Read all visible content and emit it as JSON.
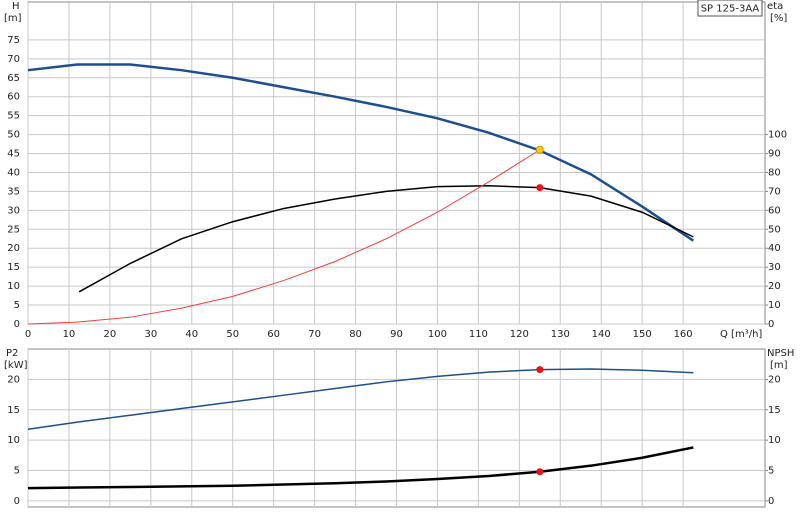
{
  "chart_data": [
    {
      "type": "line",
      "title": "SP 125-3AA",
      "xlabel": "Q [m³/h]",
      "ylabel": "H",
      "yunit": "[m]",
      "y2label": "eta",
      "y2unit": "[%]",
      "xlim": [
        0,
        180
      ],
      "xticks": [
        0,
        10,
        20,
        30,
        40,
        50,
        60,
        70,
        80,
        90,
        100,
        110,
        120,
        130,
        140,
        150,
        160
      ],
      "ylim": [
        0,
        85
      ],
      "yticks": [
        0,
        5,
        10,
        15,
        20,
        25,
        30,
        35,
        40,
        45,
        50,
        55,
        60,
        65,
        70,
        75
      ],
      "y2lim": [
        0,
        170
      ],
      "y2ticks": [
        0,
        10,
        20,
        30,
        40,
        50,
        60,
        70,
        80,
        90,
        100
      ],
      "grid": true,
      "series": [
        {
          "color": "#1f4e8c",
          "width": 2.5,
          "x": [
            0,
            12,
            25,
            37.5,
            50,
            62.5,
            75,
            87.5,
            100,
            112.5,
            125,
            137.5,
            150,
            162.5
          ],
          "values": [
            67,
            68.5,
            68.5,
            67,
            65,
            62.5,
            60,
            57.3,
            54.3,
            50.5,
            45.8,
            39.5,
            31,
            22
          ]
        },
        {
          "color": "#000000",
          "width": 1.5,
          "axis": "y2",
          "x": [
            12.5,
            25,
            37.5,
            50,
            62.5,
            75,
            87.5,
            100,
            112.5,
            125,
            137.5,
            150,
            162.5
          ],
          "values": [
            17,
            32,
            45,
            54,
            61,
            66,
            70,
            72.5,
            73,
            72,
            67.5,
            59,
            46
          ]
        },
        {
          "color": "#f04040",
          "width": 1,
          "x": [
            0,
            12,
            25,
            37.5,
            50,
            62.5,
            75,
            87.5,
            100,
            112.5,
            125
          ],
          "values": [
            0,
            0.5,
            1.8,
            4.2,
            7.3,
            11.5,
            16.5,
            22.5,
            29.5,
            37.5,
            46
          ]
        }
      ],
      "points": [
        {
          "x": 125,
          "y": 46,
          "color": "#ffd400"
        },
        {
          "x": 125,
          "y": 72,
          "color": "#ee1111",
          "axis": "y2"
        }
      ]
    },
    {
      "type": "line",
      "ylabel": "P2",
      "yunit": "[kW]",
      "y2label": "NPSH",
      "y2unit": "[m]",
      "xlim": [
        0,
        180
      ],
      "xticks": [
        0,
        10,
        20,
        30,
        40,
        50,
        60,
        70,
        80,
        90,
        100,
        110,
        120,
        130,
        140,
        150,
        160
      ],
      "ylim": [
        -1,
        25
      ],
      "yticks": [
        0,
        5,
        10,
        15,
        20
      ],
      "y2lim": [
        -1,
        25
      ],
      "y2ticks": [
        0,
        5,
        10,
        15,
        20
      ],
      "grid": true,
      "series": [
        {
          "color": "#1f4e8c",
          "width": 1.5,
          "x": [
            0,
            12.5,
            25,
            37.5,
            50,
            62.5,
            75,
            87.5,
            100,
            112.5,
            125,
            137.5,
            150,
            162.5
          ],
          "values": [
            11.8,
            13,
            14.1,
            15.2,
            16.3,
            17.4,
            18.5,
            19.6,
            20.5,
            21.2,
            21.6,
            21.7,
            21.5,
            21.1
          ]
        },
        {
          "color": "#000000",
          "width": 2.5,
          "axis": "y2",
          "x": [
            0,
            12.5,
            25,
            37.5,
            50,
            62.5,
            75,
            87.5,
            100,
            112.5,
            125,
            137.5,
            150,
            162.5
          ],
          "values": [
            2.1,
            2.2,
            2.3,
            2.4,
            2.5,
            2.7,
            2.9,
            3.2,
            3.6,
            4.1,
            4.8,
            5.8,
            7.1,
            8.8
          ]
        }
      ],
      "points": [
        {
          "x": 125,
          "y": 21.6,
          "color": "#ee1111"
        },
        {
          "x": 125,
          "y": 4.8,
          "color": "#ee1111",
          "axis": "y2"
        }
      ]
    }
  ]
}
